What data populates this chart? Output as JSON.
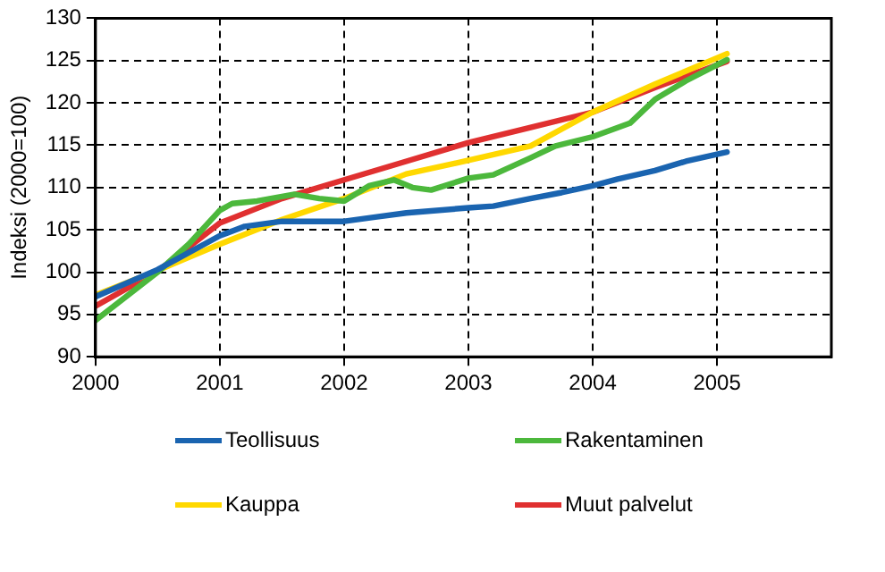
{
  "chart_data": {
    "type": "line",
    "ylabel": "Indeksi (2000=100)",
    "xlim": [
      2000,
      2005.92
    ],
    "xticks": [
      2000,
      2001,
      2002,
      2003,
      2004,
      2005
    ],
    "ylim": [
      90,
      130
    ],
    "yticks": [
      90,
      95,
      100,
      105,
      110,
      115,
      120,
      125,
      130
    ],
    "grid": true,
    "legend": "bottom",
    "marker": "none",
    "line_style": "solid",
    "series": [
      {
        "name": "Teollisuus",
        "color": "#1a64b0",
        "x": [
          2000,
          2000.5,
          2001,
          2001.2,
          2001.5,
          2002,
          2002.25,
          2002.5,
          2003,
          2003.2,
          2003.5,
          2003.75,
          2004,
          2004.2,
          2004.5,
          2004.75,
          2005.08
        ],
        "values": [
          97.1,
          100.3,
          104.3,
          105.4,
          106,
          106,
          106.5,
          107,
          107.6,
          107.8,
          108.7,
          109.4,
          110.2,
          111,
          112,
          113.1,
          114.2
        ]
      },
      {
        "name": "Rakentaminen",
        "color": "#4cb83c",
        "x": [
          2000,
          2000.5,
          2000.75,
          2001,
          2001.1,
          2001.3,
          2001.6,
          2001.8,
          2002,
          2002.2,
          2002.4,
          2002.55,
          2002.7,
          2003,
          2003.2,
          2003.5,
          2003.7,
          2004,
          2004.3,
          2004.5,
          2004.75,
          2005.08
        ],
        "values": [
          94.3,
          100,
          103.3,
          107.3,
          108.1,
          108.4,
          109.2,
          108.7,
          108.4,
          110.2,
          110.9,
          110,
          109.7,
          111.1,
          111.5,
          113.5,
          114.9,
          116,
          117.6,
          120.4,
          122.6,
          125.1
        ]
      },
      {
        "name": "Kauppa",
        "color": "#ffd800",
        "x": [
          2000,
          2000.5,
          2001,
          2001.5,
          2002,
          2002.5,
          2003,
          2003.5,
          2004,
          2004.5,
          2005.08
        ],
        "values": [
          97.3,
          100.2,
          103.3,
          106.2,
          108.7,
          111.6,
          113.2,
          114.9,
          118.9,
          122.2,
          125.8
        ]
      },
      {
        "name": "Muut palvelut",
        "color": "#e03030",
        "x": [
          2000,
          2000.5,
          2001,
          2001.5,
          2002,
          2002.5,
          2003,
          2003.5,
          2004,
          2004.5,
          2005.08
        ],
        "values": [
          96,
          100.1,
          105.8,
          108.7,
          110.9,
          113.1,
          115.3,
          117.1,
          118.9,
          121.8,
          124.9
        ]
      }
    ]
  }
}
